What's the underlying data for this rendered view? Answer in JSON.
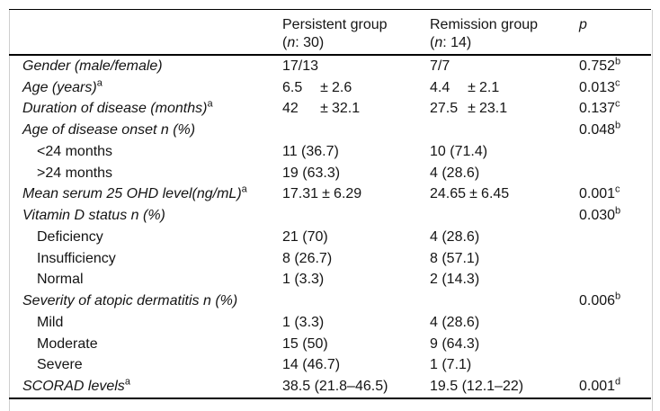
{
  "table": {
    "header": {
      "persistent": {
        "title": "Persistent group",
        "paren": "(",
        "n": "n",
        "rest": ": 30)"
      },
      "remission": {
        "title": "Remission group",
        "paren": "(",
        "n": "n",
        "rest": ": 14)"
      },
      "p": "p"
    },
    "rows": [
      {
        "label": "Gender (male/female)",
        "sup": "",
        "v1": "17/13",
        "pm1": "",
        "sd1": "",
        "v2": "7/7",
        "pm2": "",
        "sd2": "",
        "p": "0.752",
        "psup": "b"
      },
      {
        "label": "Age (years)",
        "sup": "a",
        "v1": "6.5",
        "pm1": "±",
        "sd1": "2.6",
        "v2": "4.4",
        "pm2": "±",
        "sd2": "2.1",
        "p": "0.013",
        "psup": "c"
      },
      {
        "label": "Duration of disease (months)",
        "sup": "a",
        "v1": "42",
        "pm1": "±",
        "sd1": "32.1",
        "v2": "27.5",
        "pm2": "±",
        "sd2": "23.1",
        "p": "0.137",
        "psup": "c"
      },
      {
        "label": "Age of disease onset n (%)",
        "sup": "",
        "v1": "",
        "pm1": "",
        "sd1": "",
        "v2": "",
        "pm2": "",
        "sd2": "",
        "p": "0.048",
        "psup": "b"
      },
      {
        "label": "<24 months",
        "sup": "",
        "v1": "11 (36.7)",
        "pm1": "",
        "sd1": "",
        "v2": "10 (71.4)",
        "pm2": "",
        "sd2": "",
        "p": "",
        "psup": ""
      },
      {
        "label": ">24 months",
        "sup": "",
        "v1": "19 (63.3)",
        "pm1": "",
        "sd1": "",
        "v2": "4 (28.6)",
        "pm2": "",
        "sd2": "",
        "p": "",
        "psup": ""
      },
      {
        "label": "Mean serum 25 OHD level(ng/mL)",
        "sup": "a",
        "v1": "17.31",
        "pm1": "±",
        "sd1": "6.29",
        "v2": "24.65",
        "pm2": "±",
        "sd2": "6.45",
        "p": "0.001",
        "psup": "c"
      },
      {
        "label": "Vitamin D status n (%)",
        "sup": "",
        "v1": "",
        "pm1": "",
        "sd1": "",
        "v2": "",
        "pm2": "",
        "sd2": "",
        "p": "0.030",
        "psup": "b"
      },
      {
        "label": "Deficiency",
        "sup": "",
        "v1": "21 (70)",
        "pm1": "",
        "sd1": "",
        "v2": "4 (28.6)",
        "pm2": "",
        "sd2": "",
        "p": "",
        "psup": ""
      },
      {
        "label": "Insufficiency",
        "sup": "",
        "v1": "8 (26.7)",
        "pm1": "",
        "sd1": "",
        "v2": "8 (57.1)",
        "pm2": "",
        "sd2": "",
        "p": "",
        "psup": ""
      },
      {
        "label": "Normal",
        "sup": "",
        "v1": "1 (3.3)",
        "pm1": "",
        "sd1": "",
        "v2": "2 (14.3)",
        "pm2": "",
        "sd2": "",
        "p": "",
        "psup": ""
      },
      {
        "label": "Severity of atopic dermatitis n (%)",
        "sup": "",
        "v1": "",
        "pm1": "",
        "sd1": "",
        "v2": "",
        "pm2": "",
        "sd2": "",
        "p": "0.006",
        "psup": "b"
      },
      {
        "label": "Mild",
        "sup": "",
        "v1": "1 (3.3)",
        "pm1": "",
        "sd1": "",
        "v2": "4 (28.6)",
        "pm2": "",
        "sd2": "",
        "p": "",
        "psup": ""
      },
      {
        "label": "Moderate",
        "sup": "",
        "v1": "15 (50)",
        "pm1": "",
        "sd1": "",
        "v2": "9 (64.3)",
        "pm2": "",
        "sd2": "",
        "p": "",
        "psup": ""
      },
      {
        "label": "Severe",
        "sup": "",
        "v1": "14 (46.7)",
        "pm1": "",
        "sd1": "",
        "v2": "1 (7.1)",
        "pm2": "",
        "sd2": "",
        "p": "",
        "psup": ""
      },
      {
        "label": "SCORAD levels",
        "sup": "a",
        "v1": "38.5 (21.8–46.5)",
        "pm1": "",
        "sd1": "",
        "v2": "19.5 (12.1–22)",
        "pm2": "",
        "sd2": "",
        "p": "0.001",
        "psup": "d"
      }
    ]
  }
}
